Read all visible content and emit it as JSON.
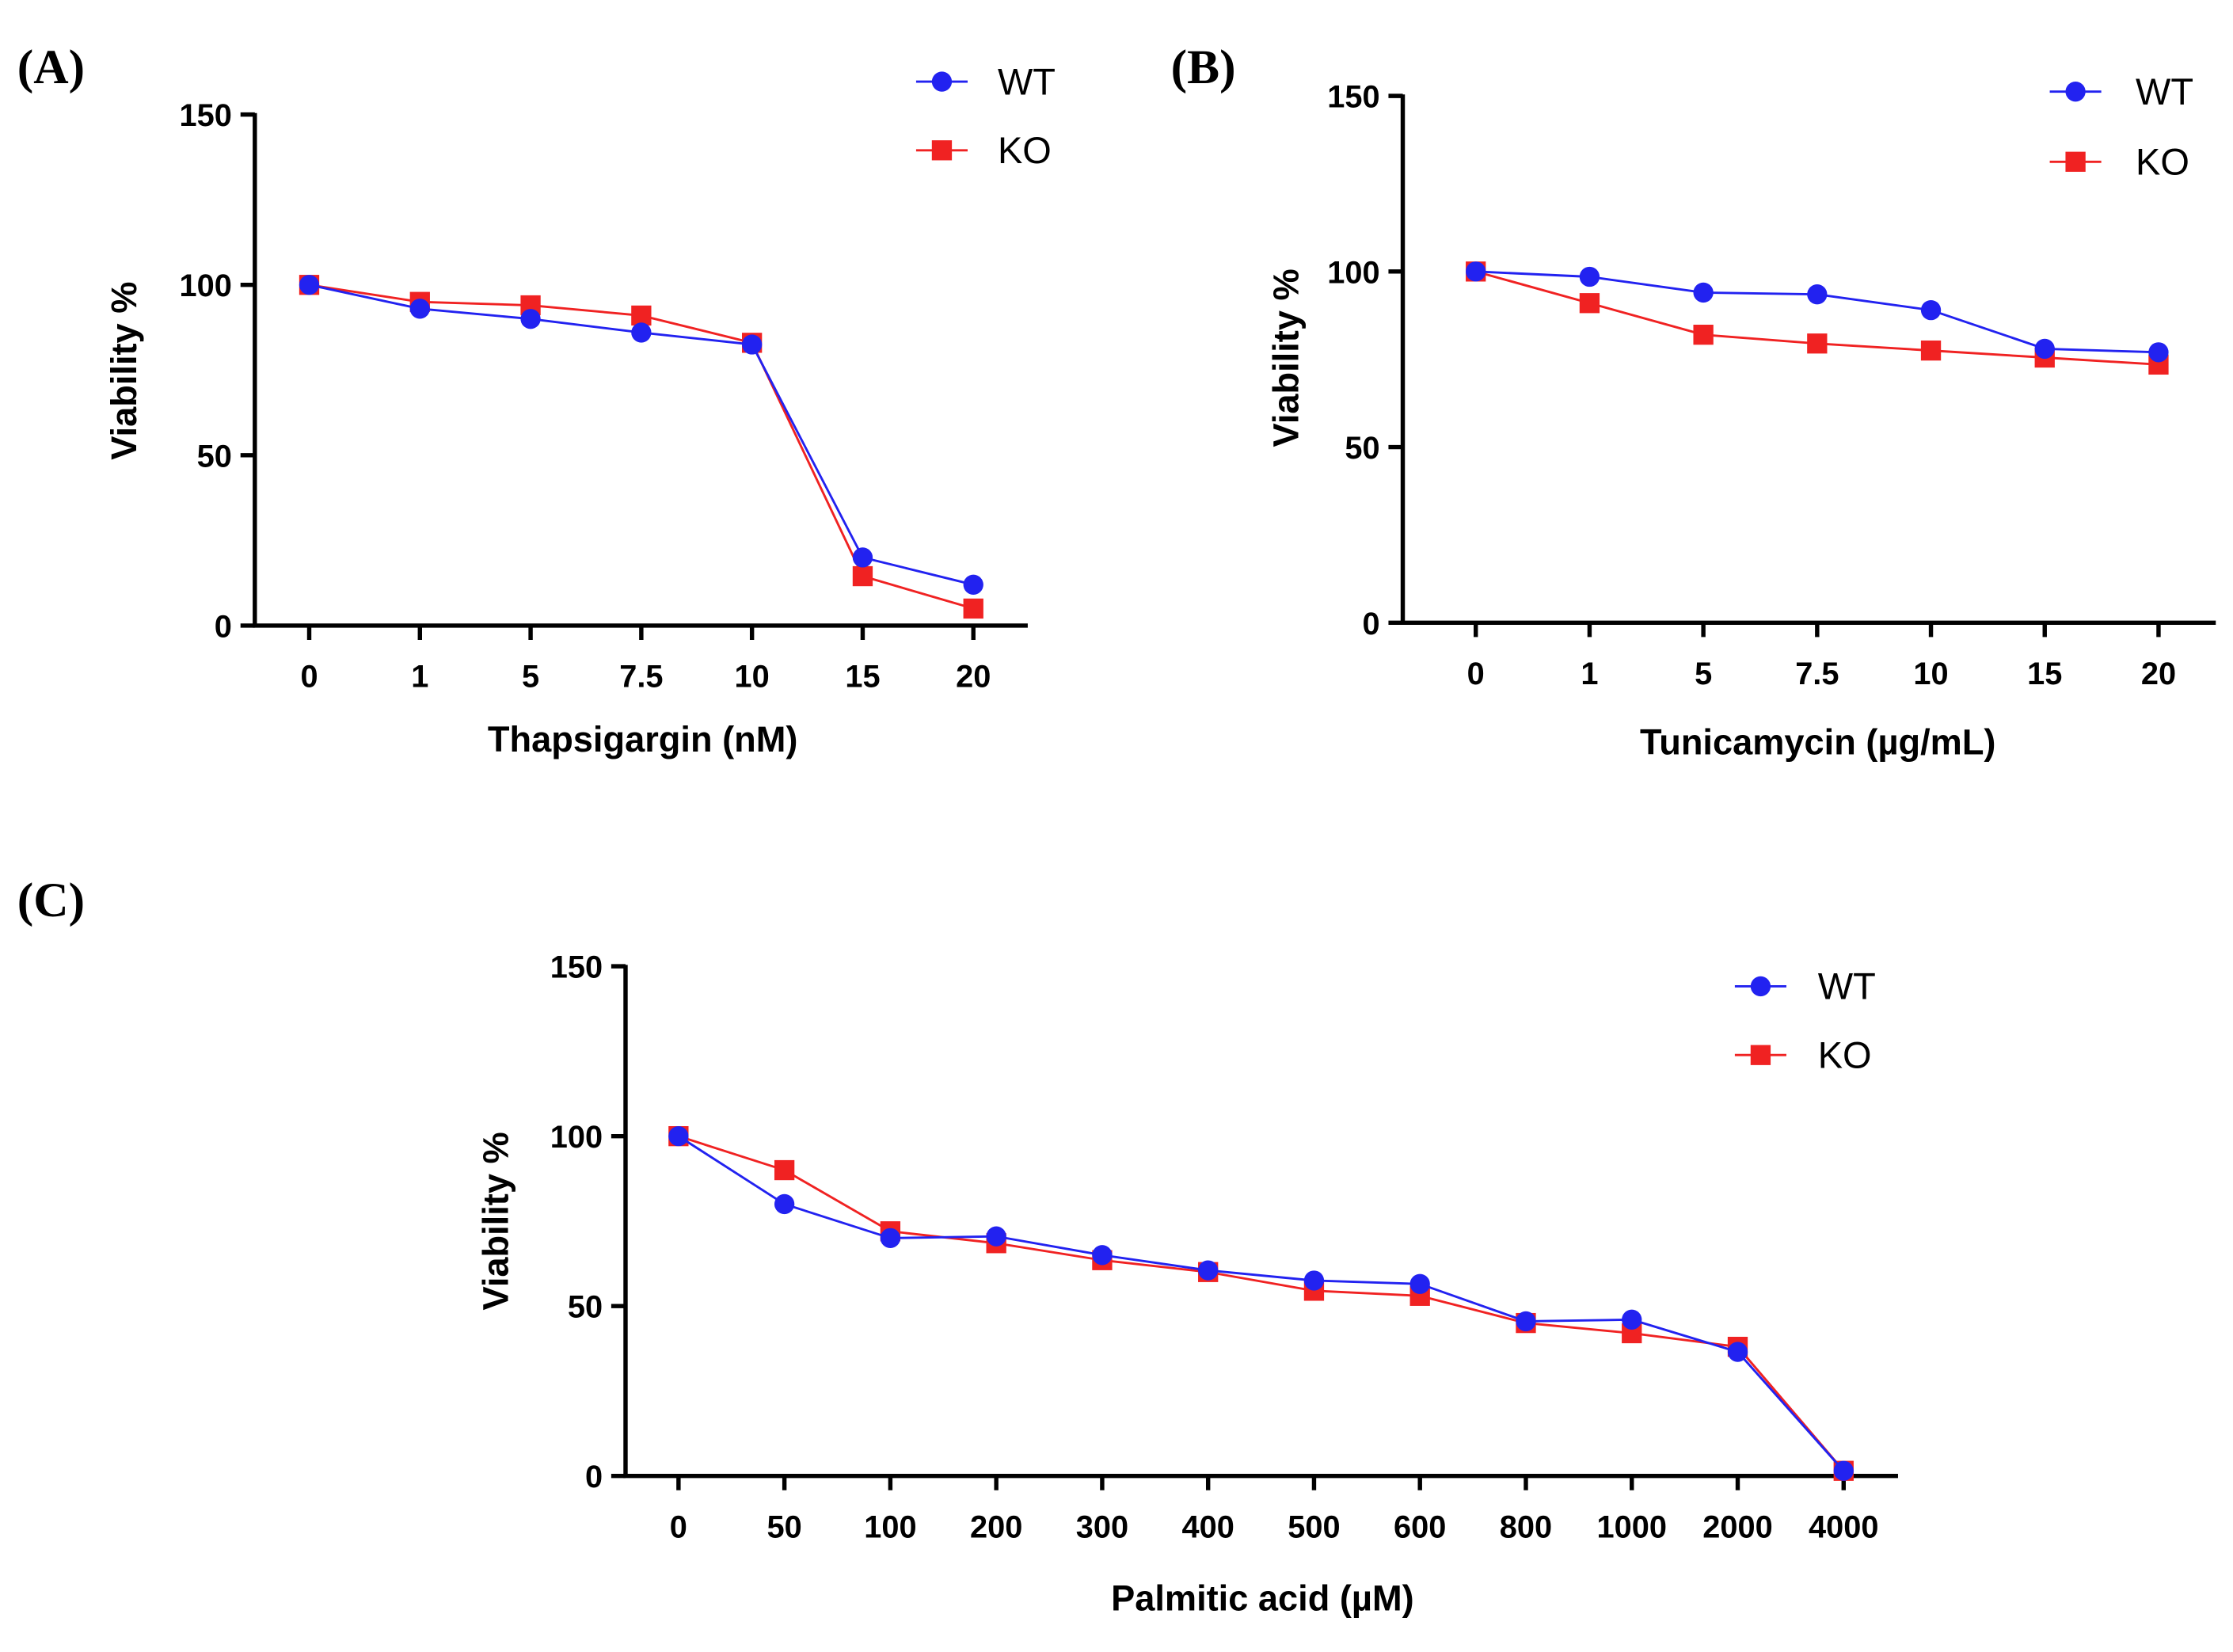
{
  "colors": {
    "WT": "#2222f0",
    "KO": "#f02222"
  },
  "chart_data": [
    {
      "type": "line",
      "panel_label": "(A)",
      "title": "",
      "xlabel": "Thapsigargin (nM)",
      "ylabel": "Viability %",
      "categories": [
        "0",
        "1",
        "5",
        "7.5",
        "10",
        "15",
        "20"
      ],
      "ylim": [
        0,
        150
      ],
      "yticks": [
        "0",
        "50",
        "100",
        "150"
      ],
      "legend_position": "top-right",
      "series": [
        {
          "name": "WT",
          "marker": "circle",
          "values": [
            100,
            93,
            90,
            86,
            82.5,
            20,
            12
          ]
        },
        {
          "name": "KO",
          "marker": "square",
          "values": [
            100,
            95,
            94,
            91,
            83,
            14.5,
            5
          ]
        }
      ]
    },
    {
      "type": "line",
      "panel_label": "(B)",
      "title": "",
      "xlabel": "Tunicamycin (µg/mL)",
      "ylabel": "Viability %",
      "categories": [
        "0",
        "1",
        "5",
        "7.5",
        "10",
        "15",
        "20"
      ],
      "ylim": [
        0,
        150
      ],
      "yticks": [
        "0",
        "50",
        "100",
        "150"
      ],
      "legend_position": "top-right",
      "series": [
        {
          "name": "WT",
          "marker": "circle",
          "values": [
            100,
            98.5,
            94,
            93.5,
            89,
            78,
            77
          ]
        },
        {
          "name": "KO",
          "marker": "square",
          "values": [
            100,
            91,
            82,
            79.5,
            77.5,
            75.5,
            73.5
          ]
        }
      ]
    },
    {
      "type": "line",
      "panel_label": "(C)",
      "title": "",
      "xlabel": "Palmitic acid (µM)",
      "ylabel": "Viability %",
      "categories": [
        "0",
        "50",
        "100",
        "200",
        "300",
        "400",
        "500",
        "600",
        "800",
        "1000",
        "2000",
        "4000"
      ],
      "ylim": [
        0,
        150
      ],
      "yticks": [
        "0",
        "50",
        "100",
        "150"
      ],
      "legend_position": "top-right",
      "series": [
        {
          "name": "WT",
          "marker": "circle",
          "values": [
            100,
            80,
            70,
            70.5,
            65,
            60.5,
            57.5,
            56.5,
            45.5,
            46,
            36.5,
            1.5
          ]
        },
        {
          "name": "KO",
          "marker": "square",
          "values": [
            100,
            90,
            72,
            68.5,
            63.5,
            60,
            54.5,
            53,
            45,
            42,
            38,
            1.5
          ]
        }
      ]
    }
  ]
}
